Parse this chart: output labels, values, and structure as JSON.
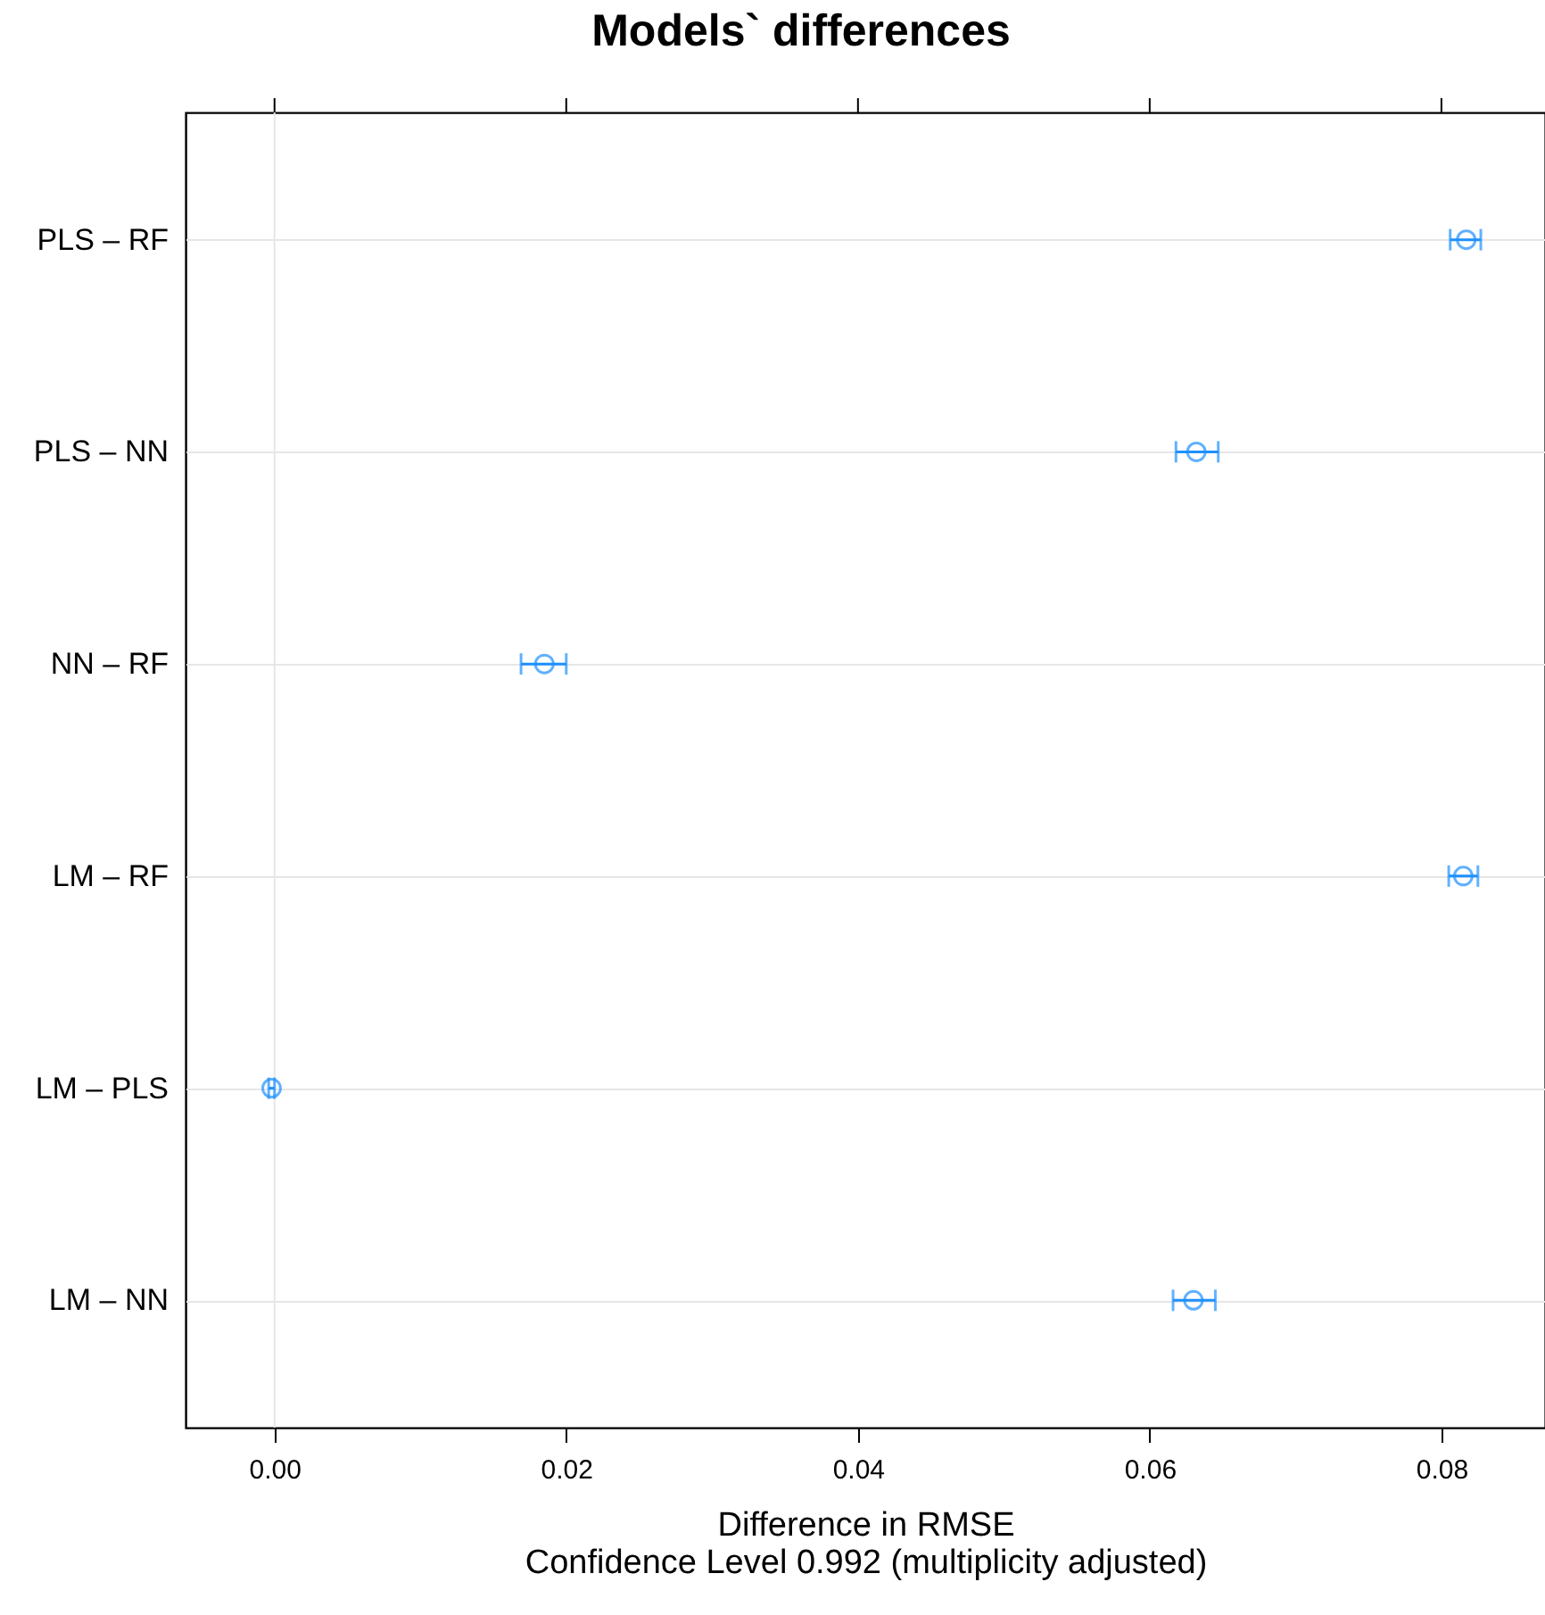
{
  "chart_data": {
    "type": "scatter",
    "orientation": "horizontal",
    "title": "Models` differences",
    "xlabel": "Difference in RMSE",
    "annotations": [
      "Confidence Level 0.992  (multiplicity adjusted)"
    ],
    "categories": [
      "PLS – RF",
      "PLS – NN",
      "NN – RF",
      "LM – RF",
      "LM – PLS",
      "LM – NN"
    ],
    "series": [
      {
        "color": "#1e90ff",
        "values": [
          0.0817,
          0.0632,
          0.0185,
          0.0815,
          -0.0002,
          0.063
        ],
        "errors": [
          [
            0.0806,
            0.0827
          ],
          [
            0.0618,
            0.0647
          ],
          [
            0.0169,
            0.02
          ],
          [
            0.0805,
            0.0825
          ],
          [
            -0.0004,
            0.0
          ],
          [
            0.0616,
            0.0645
          ]
        ]
      }
    ],
    "xlim": [
      -0.0061,
      0.0871
    ],
    "xticks": [
      {
        "value": 0,
        "label": "0.00"
      },
      {
        "value": 0.02,
        "label": "0.02"
      },
      {
        "value": 0.04,
        "label": "0.04"
      },
      {
        "value": 0.06,
        "label": "0.06"
      },
      {
        "value": 0.08,
        "label": "0.08"
      }
    ],
    "ref_lines": [
      {
        "axis": "x",
        "value": 0,
        "color": "#e6e6e6"
      }
    ],
    "grid": "y",
    "marker": "circle"
  }
}
